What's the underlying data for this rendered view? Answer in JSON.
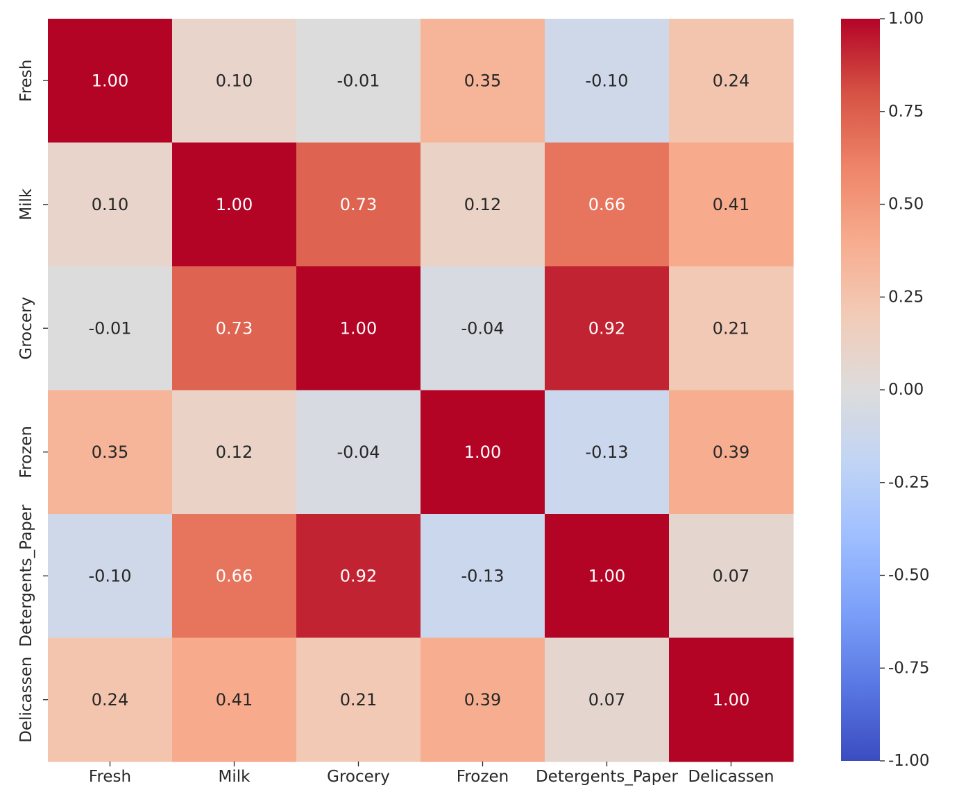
{
  "chart_data": {
    "type": "heatmap",
    "title": "",
    "xlabel": "",
    "ylabel": "",
    "x_categories": [
      "Fresh",
      "Milk",
      "Grocery",
      "Frozen",
      "Detergents_Paper",
      "Delicassen"
    ],
    "y_categories": [
      "Fresh",
      "Milk",
      "Grocery",
      "Frozen",
      "Detergents_Paper",
      "Delicassen"
    ],
    "values": [
      [
        1.0,
        0.1,
        -0.01,
        0.35,
        -0.1,
        0.24
      ],
      [
        0.1,
        1.0,
        0.73,
        0.12,
        0.66,
        0.41
      ],
      [
        -0.01,
        0.73,
        1.0,
        -0.04,
        0.92,
        0.21
      ],
      [
        0.35,
        0.12,
        -0.04,
        1.0,
        -0.13,
        0.39
      ],
      [
        -0.1,
        0.66,
        0.92,
        -0.13,
        1.0,
        0.07
      ],
      [
        0.24,
        0.41,
        0.21,
        0.39,
        0.07,
        1.0
      ]
    ],
    "cell_labels": [
      [
        "1.00",
        "0.10",
        "-0.01",
        "0.35",
        "-0.10",
        "0.24"
      ],
      [
        "0.10",
        "1.00",
        "0.73",
        "0.12",
        "0.66",
        "0.41"
      ],
      [
        "-0.01",
        "0.73",
        "1.00",
        "-0.04",
        "0.92",
        "0.21"
      ],
      [
        "0.35",
        "0.12",
        "-0.04",
        "1.00",
        "-0.13",
        "0.39"
      ],
      [
        "-0.10",
        "0.66",
        "0.92",
        "-0.13",
        "1.00",
        "0.07"
      ],
      [
        "0.24",
        "0.41",
        "0.21",
        "0.39",
        "0.07",
        "1.00"
      ]
    ],
    "vmin": -1.0,
    "vmax": 1.0,
    "colormap": "coolwarm",
    "colorbar": {
      "position": "right",
      "ticks": [
        1.0,
        0.75,
        0.5,
        0.25,
        0.0,
        -0.25,
        -0.5,
        -0.75,
        -1.0
      ],
      "tick_labels": [
        "1.00",
        "0.75",
        "0.50",
        "0.25",
        "0.00",
        "-0.25",
        "-0.50",
        "-0.75",
        "-1.00"
      ]
    },
    "grid": false
  },
  "colors": {
    "cmap_stops": [
      "#3b4cc0",
      "#5977e3",
      "#7b9ff9",
      "#9ebeff",
      "#c0d4f5",
      "#dddcdc",
      "#f2cbb7",
      "#f7ac8e",
      "#ee8468",
      "#d65244",
      "#b40426"
    ],
    "label_dark": "#262626",
    "label_light": "#ffffff"
  }
}
